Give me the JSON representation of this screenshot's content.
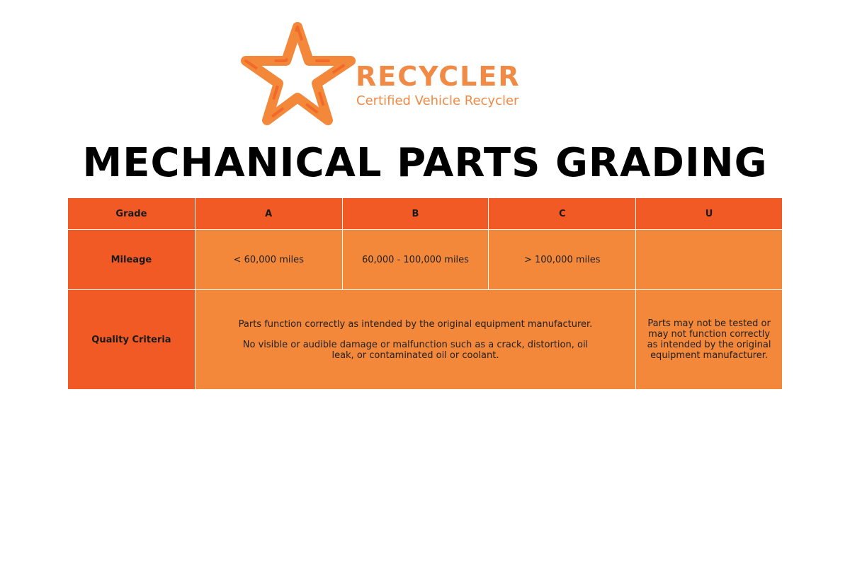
{
  "logo": {
    "brand": "RECYCLER",
    "tagline": "Certified Vehicle Recycler",
    "color": "#f08a45"
  },
  "title": "MECHANICAL PARTS GRADING",
  "colors": {
    "header": "#f15a24",
    "cell": "#f3873a"
  },
  "table": {
    "grade_label": "Grade",
    "grades": [
      "A",
      "B",
      "C",
      "U"
    ],
    "mileage_label": "Mileage",
    "mileage": [
      "< 60,000 miles",
      "60,000 - 100,000 miles",
      "> 100,000 miles",
      ""
    ],
    "quality_label": "Quality Criteria",
    "quality_abc": [
      "Parts function correctly as intended by the original equipment manufacturer.",
      "No visible or audible damage or malfunction such as a crack, distortion, oil leak, or contaminated oil or coolant."
    ],
    "quality_u": "Parts may not be tested or may not function correctly as intended by the original equipment manufacturer."
  }
}
